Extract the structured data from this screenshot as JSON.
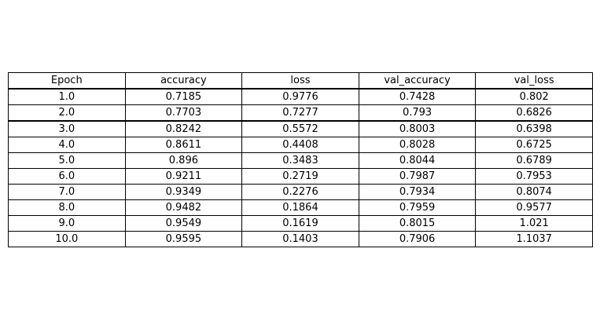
{
  "chart_data": {
    "type": "table",
    "columns": [
      "Epoch",
      "accuracy",
      "loss",
      "val_accuracy",
      "val_loss"
    ],
    "rows": [
      [
        "1.0",
        "0.7185",
        "0.9776",
        "0.7428",
        "0.802"
      ],
      [
        "2.0",
        "0.7703",
        "0.7277",
        "0.793",
        "0.6826"
      ],
      [
        "3.0",
        "0.8242",
        "0.5572",
        "0.8003",
        "0.6398"
      ],
      [
        "4.0",
        "0.8611",
        "0.4408",
        "0.8028",
        "0.6725"
      ],
      [
        "5.0",
        "0.896",
        "0.3483",
        "0.8044",
        "0.6789"
      ],
      [
        "6.0",
        "0.9211",
        "0.2719",
        "0.7987",
        "0.7953"
      ],
      [
        "7.0",
        "0.9349",
        "0.2276",
        "0.7934",
        "0.8074"
      ],
      [
        "8.0",
        "0.9482",
        "0.1864",
        "0.7959",
        "0.9577"
      ],
      [
        "9.0",
        "0.9549",
        "0.1619",
        "0.8015",
        "1.021"
      ],
      [
        "10.0",
        "0.9595",
        "0.1403",
        "0.7906",
        "1.1037"
      ]
    ],
    "thick_border_after_rows": [
      0,
      2
    ]
  }
}
